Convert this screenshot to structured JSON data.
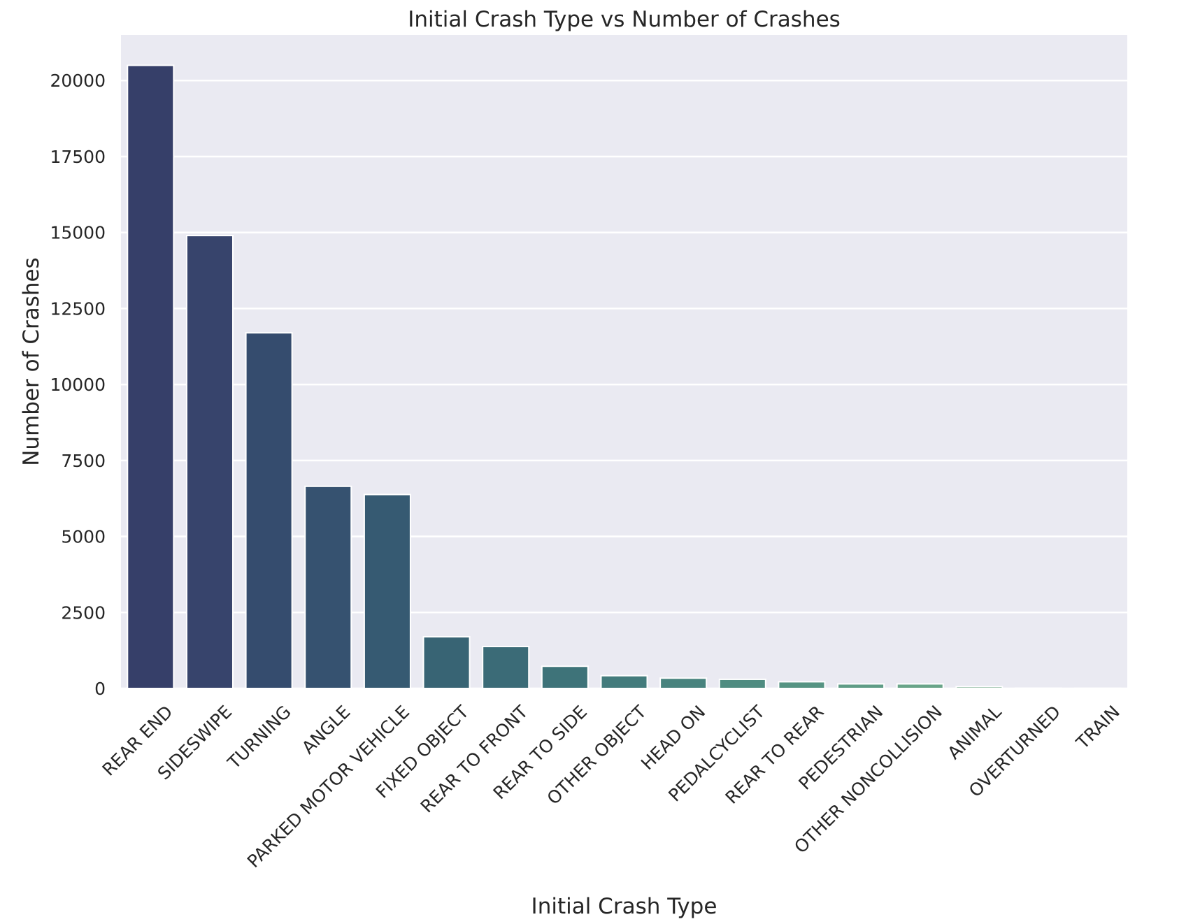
{
  "chart_data": {
    "type": "bar",
    "title": "Initial Crash Type vs Number of Crashes",
    "xlabel": "Initial Crash Type",
    "ylabel": "Number of Crashes",
    "ylim": [
      0,
      21500
    ],
    "yticks": [
      0,
      2500,
      5000,
      7500,
      10000,
      12500,
      15000,
      17500,
      20000
    ],
    "grid": true,
    "categories": [
      "REAR END",
      "SIDESWIPE",
      "TURNING",
      "ANGLE",
      "PARKED MOTOR VEHICLE",
      "FIXED OBJECT",
      "REAR TO FRONT",
      "REAR TO SIDE",
      "OTHER OBJECT",
      "HEAD ON",
      "PEDALCYCLIST",
      "REAR TO REAR",
      "PEDESTRIAN",
      "OTHER NONCOLLISION",
      "ANIMAL",
      "OVERTURNED",
      "TRAIN"
    ],
    "values": [
      20500,
      14900,
      11700,
      6650,
      6380,
      1700,
      1380,
      730,
      420,
      340,
      300,
      220,
      150,
      150,
      60,
      10,
      5
    ],
    "colors": [
      "#363f69",
      "#37446c",
      "#354c6e",
      "#365270",
      "#365a72",
      "#386474",
      "#3b6b77",
      "#3e7379",
      "#437b7c",
      "#48837e",
      "#4f8c81",
      "#569483",
      "#5f9c86",
      "#69a489",
      "#78ac8d",
      "#86b491",
      "#95bb96"
    ],
    "background_color": "#eaeaf2",
    "grid_color": "#ffffff"
  }
}
